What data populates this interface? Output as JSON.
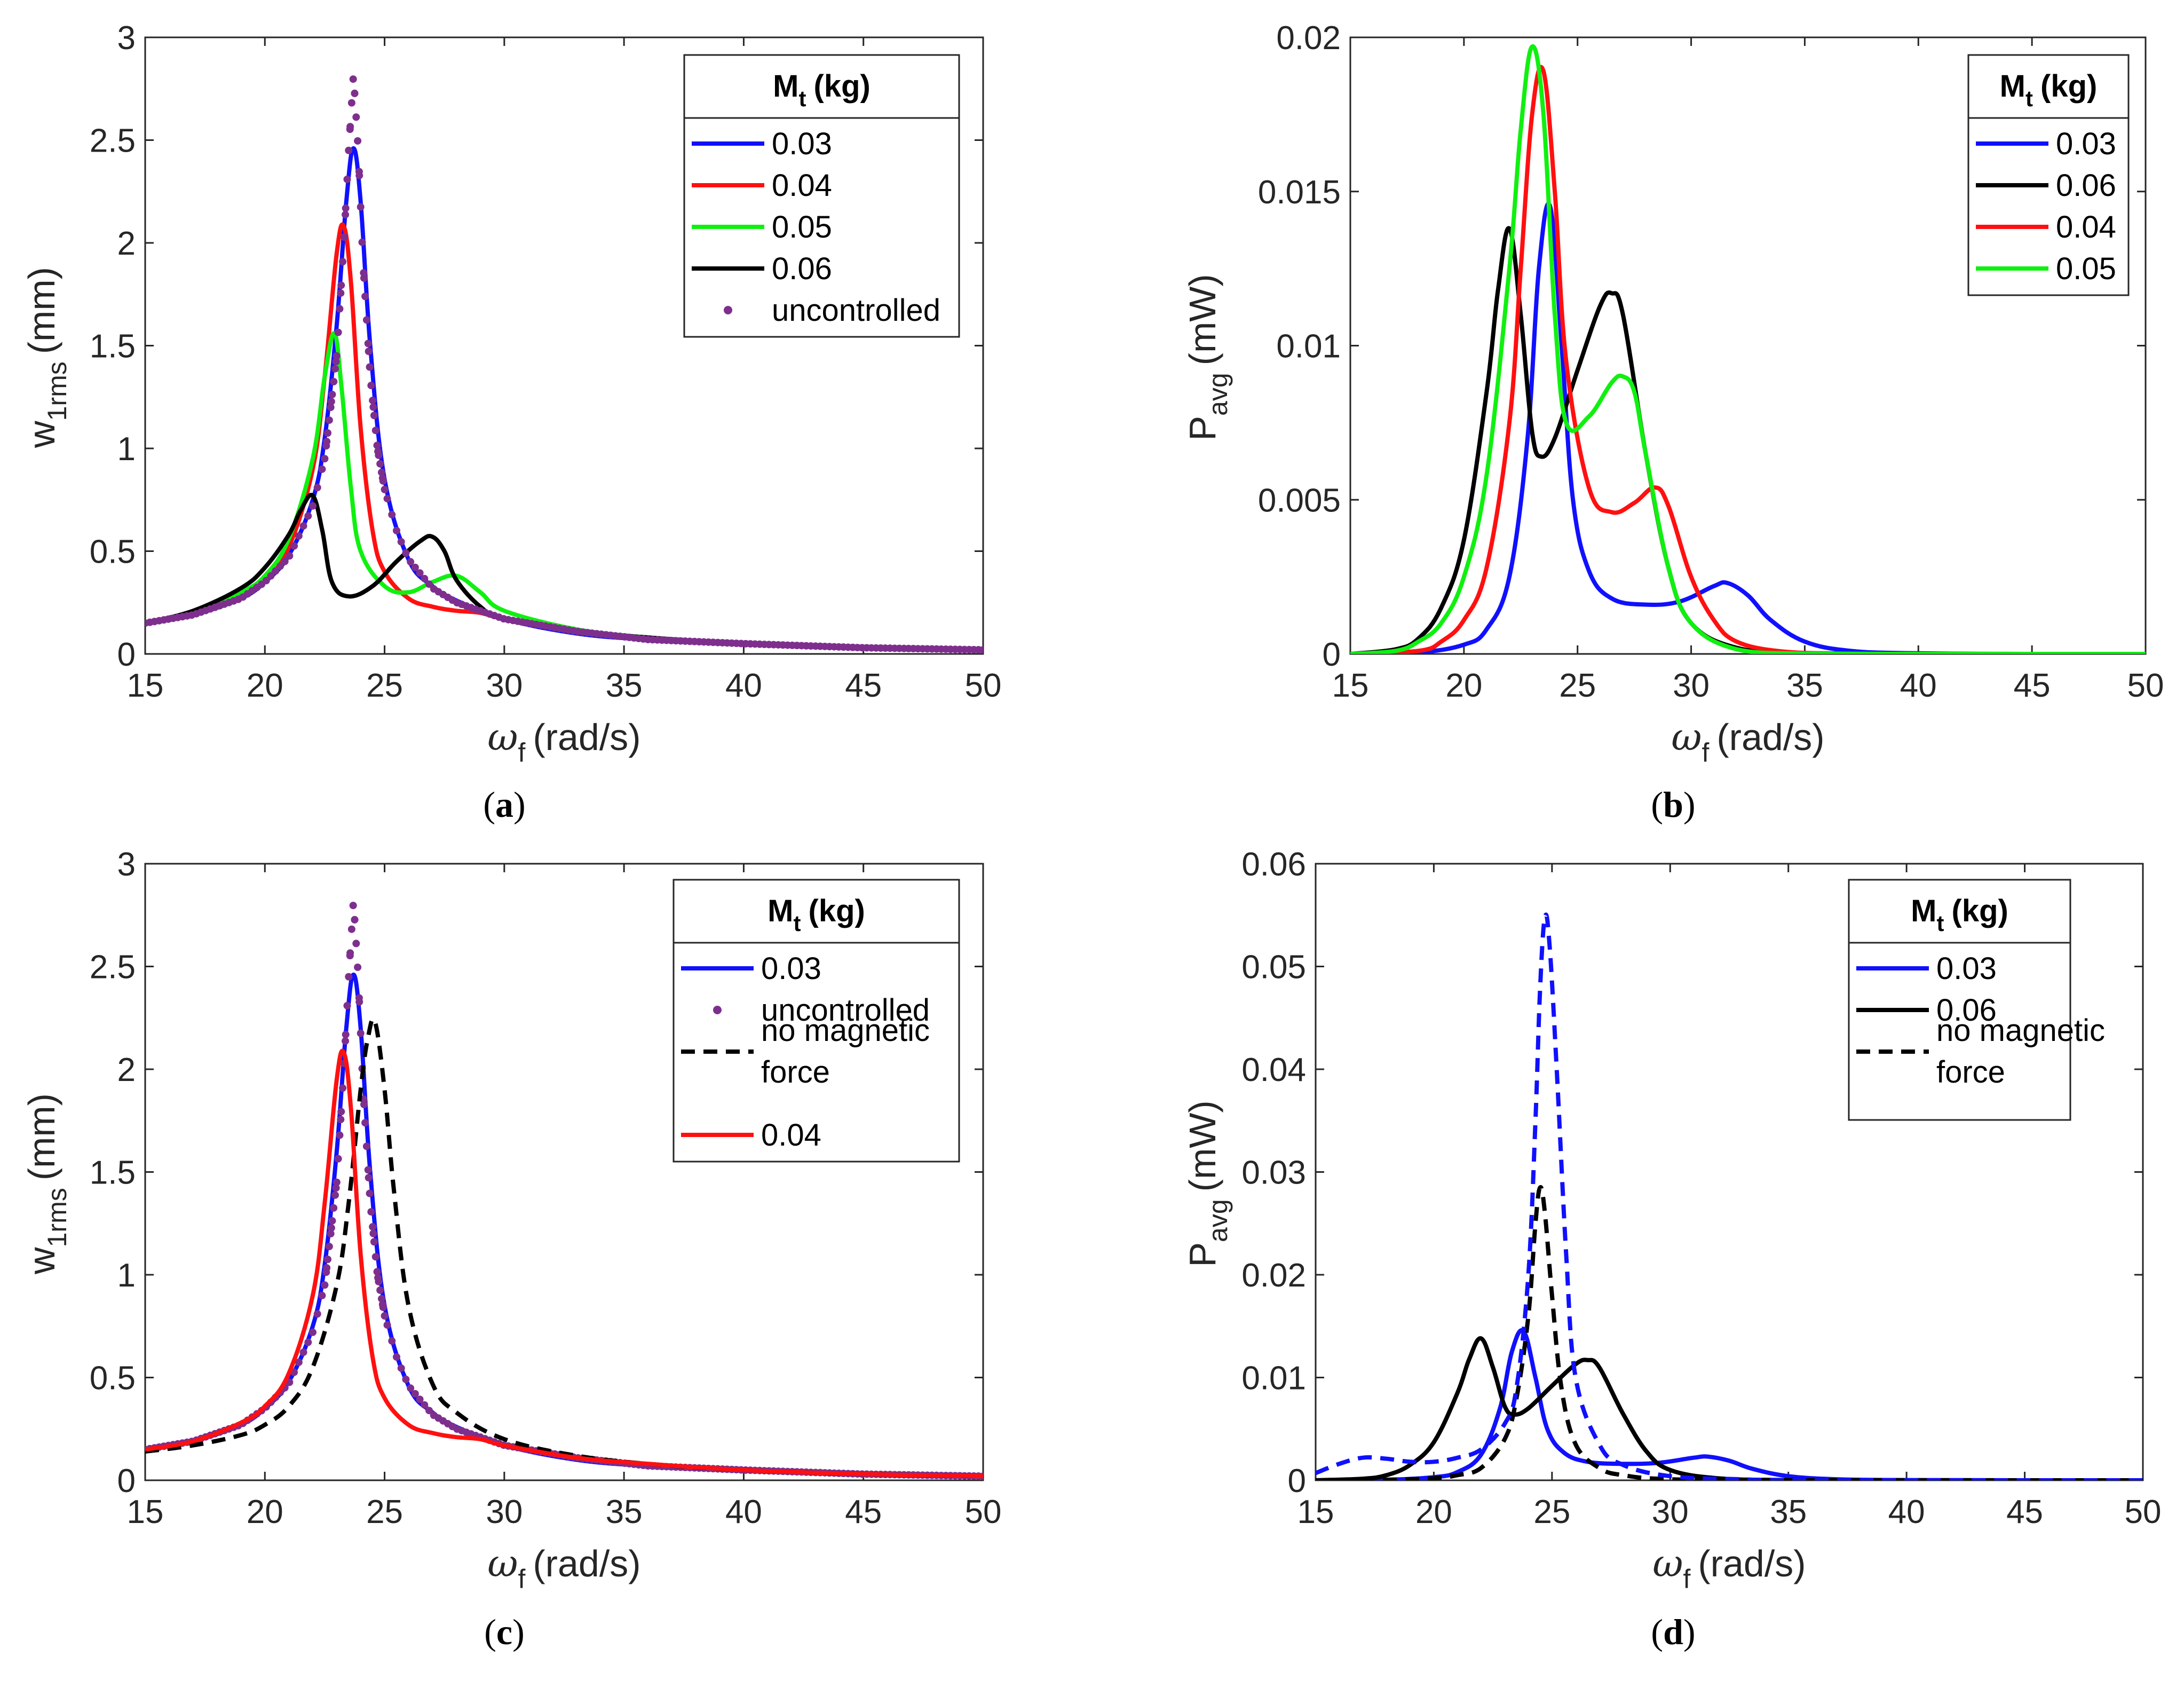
{
  "colors": {
    "blue": "#1010ff",
    "red": "#ff1010",
    "green": "#10f010",
    "black": "#000000",
    "purple": "#7e2f8e",
    "axis": "#262626"
  },
  "chart_data": [
    {
      "id": "a",
      "type": "line",
      "caption": "a",
      "xlabel": "(rad/s)",
      "ylabel": "(mm)",
      "xlim": [
        15,
        50
      ],
      "ylim": [
        0,
        3
      ],
      "xticks": [
        15,
        20,
        25,
        30,
        35,
        40,
        45,
        50
      ],
      "yticks": [
        0,
        0.5,
        1,
        1.5,
        2,
        2.5,
        3
      ],
      "ytick_labels": [
        "0",
        "0.5",
        "1",
        "1.5",
        "2",
        "2.5",
        "3"
      ],
      "legend": {
        "title": "M",
        "title_sub": "t",
        "title_unit": "(kg)",
        "position": "top-right"
      },
      "series": [
        {
          "name": "0.03",
          "color": "blue",
          "style": "solid",
          "x": [
            15,
            17,
            19,
            20,
            21,
            22,
            22.5,
            23,
            23.4,
            23.7,
            24,
            24.4,
            25,
            26,
            27,
            28,
            30,
            33,
            36,
            40,
            45,
            50
          ],
          "y": [
            0.15,
            0.19,
            0.27,
            0.35,
            0.48,
            0.75,
            1.05,
            1.6,
            2.2,
            2.46,
            2.2,
            1.5,
            0.85,
            0.46,
            0.33,
            0.26,
            0.17,
            0.1,
            0.07,
            0.05,
            0.03,
            0.02
          ]
        },
        {
          "name": "0.04",
          "color": "red",
          "style": "solid",
          "x": [
            15,
            17,
            19,
            20,
            21,
            22,
            22.5,
            23,
            23.3,
            23.6,
            24,
            24.5,
            25,
            26,
            27,
            28,
            29,
            30,
            33,
            36,
            40,
            45,
            50
          ],
          "y": [
            0.15,
            0.19,
            0.28,
            0.36,
            0.52,
            0.9,
            1.35,
            1.95,
            2.08,
            1.8,
            1.1,
            0.6,
            0.4,
            0.27,
            0.23,
            0.21,
            0.2,
            0.17,
            0.11,
            0.08,
            0.05,
            0.03,
            0.02
          ]
        },
        {
          "name": "0.05",
          "color": "green",
          "style": "solid",
          "x": [
            15,
            17,
            19,
            20,
            21,
            22,
            22.5,
            22.9,
            23.2,
            23.6,
            24,
            25,
            26,
            27,
            28,
            29,
            30,
            33,
            36,
            40,
            45,
            50
          ],
          "y": [
            0.15,
            0.2,
            0.3,
            0.38,
            0.56,
            0.95,
            1.35,
            1.56,
            1.3,
            0.8,
            0.5,
            0.33,
            0.3,
            0.35,
            0.38,
            0.3,
            0.21,
            0.12,
            0.08,
            0.05,
            0.03,
            0.02
          ]
        },
        {
          "name": "0.06",
          "color": "black",
          "style": "solid",
          "x": [
            15,
            17,
            19,
            20,
            21,
            21.5,
            22,
            22.4,
            22.8,
            23.5,
            24.5,
            25.5,
            26.5,
            27,
            27.5,
            28,
            29,
            30,
            33,
            36,
            40,
            45,
            50
          ],
          "y": [
            0.15,
            0.21,
            0.32,
            0.42,
            0.58,
            0.7,
            0.77,
            0.6,
            0.35,
            0.28,
            0.33,
            0.45,
            0.55,
            0.57,
            0.5,
            0.36,
            0.23,
            0.17,
            0.11,
            0.08,
            0.05,
            0.03,
            0.02
          ]
        },
        {
          "name": "uncontrolled",
          "color": "purple",
          "style": "dots",
          "x": [
            15,
            17,
            19,
            20,
            21,
            22,
            22.5,
            23,
            23.3,
            23.5,
            23.7,
            23.9,
            24.1,
            24.4,
            24.7,
            25,
            25.5,
            26,
            27,
            28,
            30,
            33,
            36,
            40,
            45,
            50
          ],
          "y": [
            0.15,
            0.19,
            0.27,
            0.35,
            0.47,
            0.72,
            0.95,
            1.45,
            2.0,
            2.45,
            2.82,
            2.45,
            1.9,
            1.35,
            1.0,
            0.8,
            0.6,
            0.46,
            0.32,
            0.25,
            0.17,
            0.11,
            0.07,
            0.05,
            0.03,
            0.02
          ]
        }
      ]
    },
    {
      "id": "b",
      "type": "line",
      "caption": "b",
      "xlabel": "(rad/s)",
      "ylabel": "(mW)",
      "xlim": [
        15,
        50
      ],
      "ylim": [
        0,
        0.02
      ],
      "xticks": [
        15,
        20,
        25,
        30,
        35,
        40,
        45,
        50
      ],
      "yticks": [
        0,
        0.005,
        0.01,
        0.015,
        0.02
      ],
      "ytick_labels": [
        "0",
        "0.005",
        "0.01",
        "0.015",
        "0.02"
      ],
      "legend": {
        "title": "M",
        "title_sub": "t",
        "title_unit": "(kg)",
        "position": "top-right"
      },
      "series": [
        {
          "name": "0.03",
          "color": "blue",
          "style": "solid",
          "x": [
            15,
            18,
            20,
            21,
            22,
            22.8,
            23.3,
            23.8,
            24.3,
            24.8,
            25.5,
            26.5,
            28,
            29.5,
            31,
            31.6,
            32.5,
            33.5,
            35,
            37,
            40,
            45,
            50
          ],
          "y": [
            0,
            5e-05,
            0.0003,
            0.0008,
            0.0025,
            0.007,
            0.0125,
            0.0145,
            0.01,
            0.005,
            0.0027,
            0.0018,
            0.0016,
            0.0017,
            0.0022,
            0.0023,
            0.0019,
            0.0011,
            0.0004,
            0.0001,
            2e-05,
            0,
            0
          ]
        },
        {
          "name": "0.06",
          "color": "black",
          "style": "solid",
          "x": [
            15,
            17,
            18,
            19,
            20,
            21,
            21.5,
            22,
            22.5,
            23,
            23.4,
            24,
            25,
            26,
            26.5,
            27,
            28,
            29,
            30,
            32,
            35,
            40,
            50
          ],
          "y": [
            0,
            0.00015,
            0.0005,
            0.0015,
            0.0037,
            0.0085,
            0.0118,
            0.0138,
            0.011,
            0.0072,
            0.0064,
            0.007,
            0.0092,
            0.0113,
            0.0117,
            0.011,
            0.0065,
            0.0028,
            0.001,
            0.0002,
            2e-05,
            0,
            0
          ]
        },
        {
          "name": "0.04",
          "color": "red",
          "style": "solid",
          "x": [
            15,
            18,
            19,
            20,
            21,
            22,
            22.5,
            23,
            23.5,
            24,
            24.5,
            25.5,
            26.5,
            27.5,
            28.4,
            29,
            30,
            31,
            32,
            34,
            37,
            40,
            50
          ],
          "y": [
            0,
            0.0001,
            0.0004,
            0.0011,
            0.0028,
            0.0075,
            0.0125,
            0.0175,
            0.0189,
            0.015,
            0.0095,
            0.0054,
            0.0046,
            0.0049,
            0.0054,
            0.0048,
            0.0025,
            0.0011,
            0.0004,
            8e-05,
            1e-05,
            0,
            0
          ]
        },
        {
          "name": "0.05",
          "color": "green",
          "style": "solid",
          "x": [
            15,
            17,
            18,
            19,
            20,
            21,
            22,
            22.5,
            23,
            23.5,
            24,
            24.5,
            25.5,
            26.5,
            27,
            27.5,
            28,
            29,
            30,
            32,
            35,
            40,
            50
          ],
          "y": [
            0,
            0.0001,
            0.0004,
            0.001,
            0.0025,
            0.0058,
            0.0125,
            0.017,
            0.0197,
            0.0175,
            0.011,
            0.0075,
            0.0077,
            0.0088,
            0.009,
            0.0085,
            0.0065,
            0.0028,
            0.001,
            0.00015,
            1e-05,
            0,
            0
          ]
        }
      ]
    },
    {
      "id": "c",
      "type": "line",
      "caption": "c",
      "xlabel": "(rad/s)",
      "ylabel": "(mm)",
      "xlim": [
        15,
        50
      ],
      "ylim": [
        0,
        3
      ],
      "xticks": [
        15,
        20,
        25,
        30,
        35,
        40,
        45,
        50
      ],
      "yticks": [
        0,
        0.5,
        1,
        1.5,
        2,
        2.5,
        3
      ],
      "ytick_labels": [
        "0",
        "0.5",
        "1",
        "1.5",
        "2",
        "2.5",
        "3"
      ],
      "legend": {
        "title": "M",
        "title_sub": "t",
        "title_unit": "(kg)",
        "position": "top-right"
      },
      "series": [
        {
          "name": "0.03",
          "color": "blue",
          "style": "solid",
          "x": [
            15,
            17,
            19,
            20,
            21,
            22,
            22.5,
            23,
            23.4,
            23.7,
            24,
            24.4,
            25,
            26,
            27,
            28,
            30,
            33,
            36,
            40,
            45,
            50
          ],
          "y": [
            0.15,
            0.19,
            0.27,
            0.35,
            0.48,
            0.75,
            1.05,
            1.6,
            2.2,
            2.46,
            2.2,
            1.5,
            0.85,
            0.46,
            0.33,
            0.26,
            0.17,
            0.1,
            0.07,
            0.05,
            0.03,
            0.02
          ]
        },
        {
          "name": "uncontrolled",
          "color": "purple",
          "style": "dots",
          "x": [
            15,
            17,
            19,
            20,
            21,
            22,
            22.5,
            23,
            23.3,
            23.5,
            23.7,
            23.9,
            24.1,
            24.4,
            24.7,
            25,
            25.5,
            26,
            27,
            28,
            30,
            33,
            36,
            40,
            45,
            50
          ],
          "y": [
            0.15,
            0.19,
            0.27,
            0.35,
            0.47,
            0.72,
            0.95,
            1.45,
            2.0,
            2.45,
            2.82,
            2.45,
            1.9,
            1.35,
            1.0,
            0.8,
            0.6,
            0.46,
            0.32,
            0.25,
            0.17,
            0.11,
            0.07,
            0.05,
            0.03,
            0.02
          ]
        },
        {
          "name": "no magnetic force",
          "color": "black",
          "style": "dashed",
          "x": [
            15,
            17,
            19,
            20,
            21,
            22,
            23,
            23.5,
            24,
            24.3,
            24.6,
            25,
            25.4,
            26,
            27,
            28,
            30,
            33,
            36,
            40,
            45,
            50
          ],
          "y": [
            0.14,
            0.17,
            0.22,
            0.27,
            0.36,
            0.55,
            0.95,
            1.35,
            1.9,
            2.15,
            2.23,
            1.9,
            1.4,
            0.85,
            0.47,
            0.33,
            0.2,
            0.12,
            0.08,
            0.05,
            0.03,
            0.02
          ]
        },
        {
          "name": "0.04",
          "color": "red",
          "style": "solid",
          "x": [
            15,
            17,
            19,
            20,
            21,
            22,
            22.5,
            23,
            23.3,
            23.6,
            24,
            24.5,
            25,
            26,
            27,
            28,
            29,
            30,
            33,
            36,
            40,
            45,
            50
          ],
          "y": [
            0.15,
            0.19,
            0.28,
            0.36,
            0.52,
            0.9,
            1.35,
            1.95,
            2.08,
            1.8,
            1.1,
            0.6,
            0.4,
            0.27,
            0.23,
            0.21,
            0.2,
            0.17,
            0.11,
            0.08,
            0.05,
            0.03,
            0.02
          ]
        }
      ]
    },
    {
      "id": "d",
      "type": "line",
      "caption": "d",
      "xlabel": "(rad/s)",
      "ylabel": "(mW)",
      "xlim": [
        15,
        50
      ],
      "ylim": [
        0,
        0.06
      ],
      "xticks": [
        15,
        20,
        25,
        30,
        35,
        40,
        45,
        50
      ],
      "yticks": [
        0,
        0.01,
        0.02,
        0.03,
        0.04,
        0.05,
        0.06
      ],
      "ytick_labels": [
        "0",
        "0.01",
        "0.02",
        "0.03",
        "0.04",
        "0.05",
        "0.06"
      ],
      "legend": {
        "title": "M",
        "title_sub": "t",
        "title_unit": "(kg)",
        "position": "top-right"
      },
      "series": [
        {
          "name": "0.03",
          "color": "blue",
          "style": "solid",
          "x": [
            15,
            18,
            20,
            21,
            22,
            22.8,
            23.3,
            23.8,
            24.3,
            24.8,
            25.5,
            26.5,
            28,
            29.5,
            31,
            31.6,
            32.5,
            33.5,
            35,
            37,
            40,
            45,
            50
          ],
          "y": [
            0,
            5e-05,
            0.0003,
            0.0008,
            0.0025,
            0.007,
            0.0125,
            0.0145,
            0.01,
            0.005,
            0.0027,
            0.0018,
            0.0016,
            0.0017,
            0.0022,
            0.0023,
            0.0019,
            0.0011,
            0.0004,
            0.0001,
            2e-05,
            0,
            0
          ]
        },
        {
          "name": "0.06",
          "color": "black",
          "style": "solid",
          "x": [
            15,
            17,
            18,
            19,
            20,
            21,
            21.5,
            22,
            22.5,
            23,
            23.4,
            24,
            25,
            26,
            26.5,
            27,
            28,
            29,
            30,
            32,
            35,
            40,
            50
          ],
          "y": [
            0,
            0.00015,
            0.0005,
            0.0015,
            0.0037,
            0.0085,
            0.0118,
            0.0138,
            0.011,
            0.0072,
            0.0064,
            0.007,
            0.0092,
            0.0113,
            0.0117,
            0.011,
            0.0065,
            0.0028,
            0.001,
            0.0002,
            2e-05,
            0,
            0
          ]
        },
        {
          "name": "no magnetic force",
          "color": "black",
          "style": "dashed",
          "x": [
            15,
            18,
            20,
            21,
            22,
            23,
            23.5,
            24,
            24.3,
            24.5,
            24.7,
            25,
            25.4,
            26,
            27,
            28,
            30,
            35,
            50
          ],
          "y": [
            0,
            5e-05,
            0.0002,
            0.0005,
            0.0012,
            0.004,
            0.008,
            0.016,
            0.025,
            0.0285,
            0.026,
            0.018,
            0.009,
            0.0035,
            0.0012,
            0.0005,
            0.0001,
            0,
            0
          ]
        }
      ],
      "extra_series": [
        {
          "color": "blue",
          "style": "dashed",
          "x": [
            15,
            16,
            17,
            18,
            19,
            20,
            21,
            22,
            23,
            23.5,
            24,
            24.3,
            24.5,
            24.7,
            24.9,
            25.2,
            25.6,
            26,
            27,
            28,
            30,
            33,
            36,
            50
          ],
          "y": [
            0.0007,
            0.0016,
            0.0022,
            0.0021,
            0.0018,
            0.0018,
            0.0022,
            0.003,
            0.0055,
            0.009,
            0.02,
            0.035,
            0.048,
            0.0548,
            0.052,
            0.04,
            0.022,
            0.01,
            0.0035,
            0.0015,
            0.0004,
            0.0001,
            0,
            0
          ]
        }
      ]
    }
  ]
}
